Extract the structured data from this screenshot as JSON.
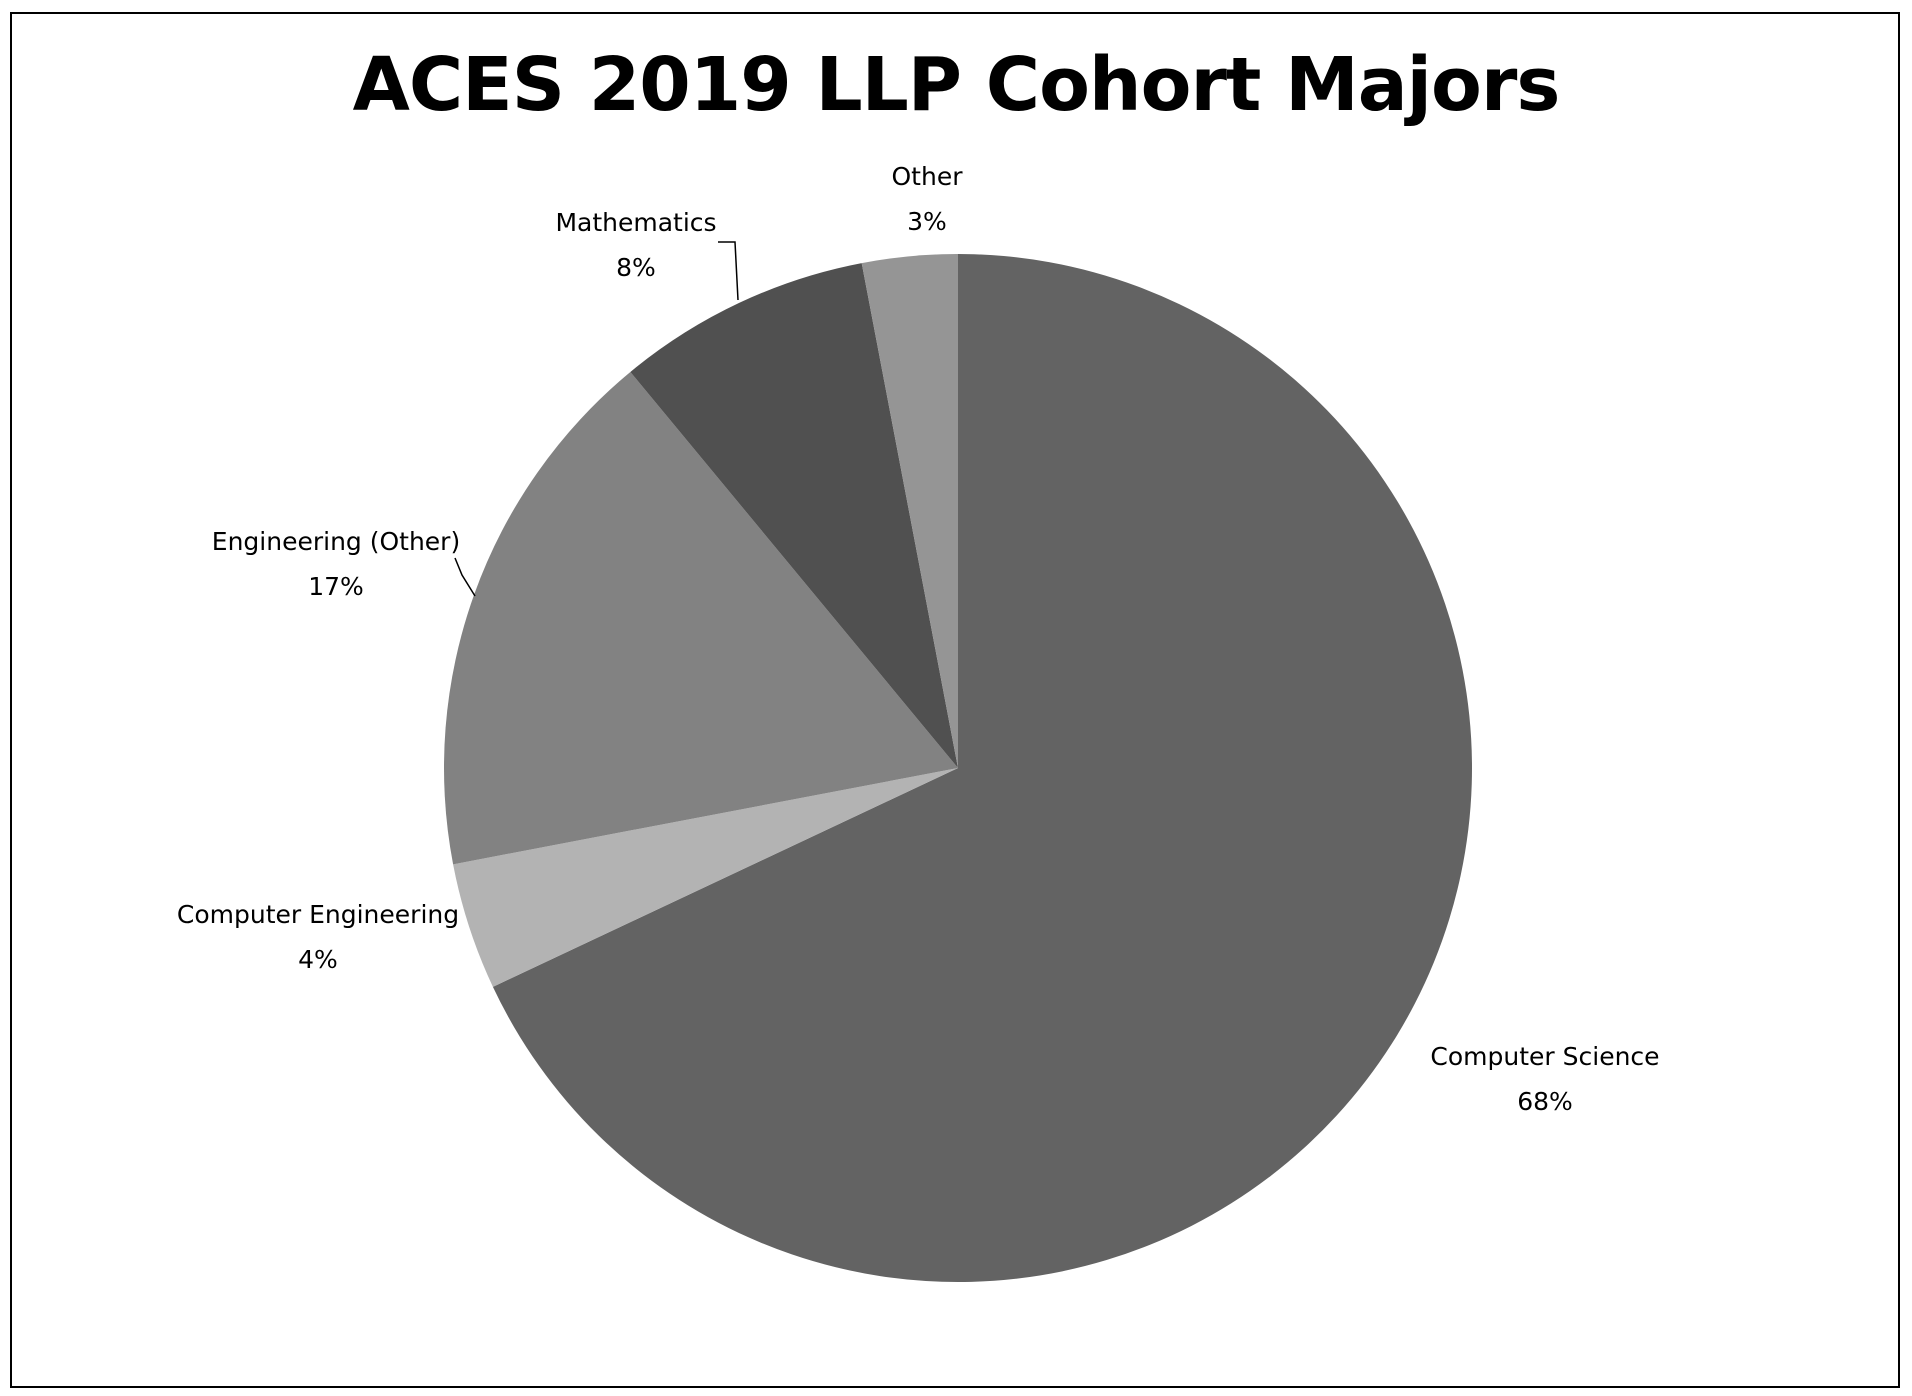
{
  "chart_data": {
    "type": "pie",
    "title": "ACES 2019 LLP Cohort Majors",
    "start_angle": "12 o'clock",
    "direction": "clockwise",
    "slices": [
      {
        "label": "Computer Science",
        "value": 68,
        "value_label": "68%",
        "color": "#636363"
      },
      {
        "label": "Computer Engineering",
        "value": 4,
        "value_label": "4%",
        "color": "#b3b3b3"
      },
      {
        "label": "Engineering (Other)",
        "value": 17,
        "value_label": "17%",
        "color": "#828282"
      },
      {
        "label": "Mathematics",
        "value": 8,
        "value_label": "8%",
        "color": "#505050"
      },
      {
        "label": "Other",
        "value": 3,
        "value_label": "3%",
        "color": "#959595"
      }
    ]
  }
}
